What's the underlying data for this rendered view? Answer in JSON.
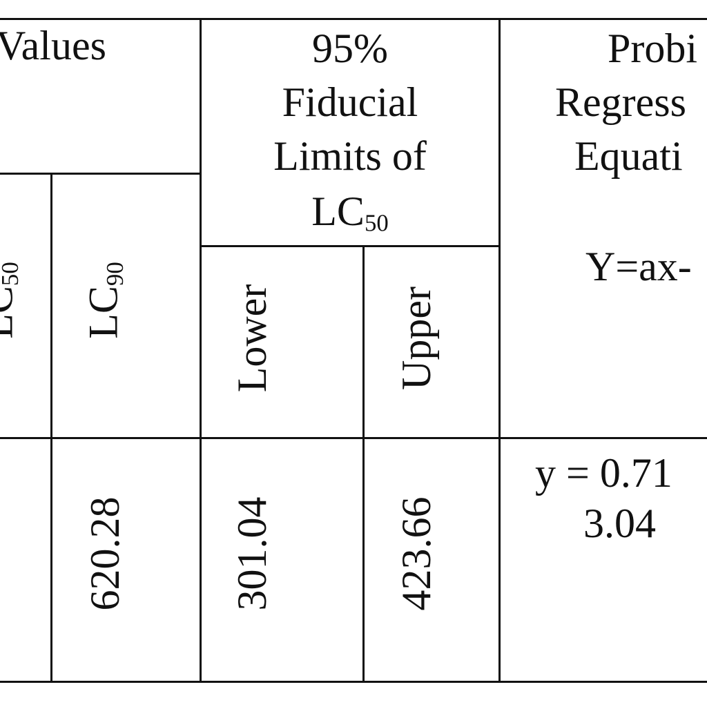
{
  "table": {
    "header": {
      "values_group": "Values",
      "fiducial": {
        "lines": [
          "95%",
          "Fiducial",
          "Limits of"
        ],
        "lc50": {
          "base": "LC",
          "sub": "50"
        }
      },
      "probit": {
        "lines": [
          "Probi",
          "Regress",
          "Equati"
        ],
        "formula": "Y=ax-"
      },
      "lc50": {
        "base": "LC",
        "sub": "50"
      },
      "lc90": {
        "base": "LC",
        "sub": "90"
      },
      "lower": "Lower",
      "upper": "Upper"
    },
    "row": {
      "lc90": "620.28",
      "lower": "301.04",
      "upper": "423.66",
      "equation": [
        "y = 0.71",
        "3.04"
      ]
    }
  }
}
